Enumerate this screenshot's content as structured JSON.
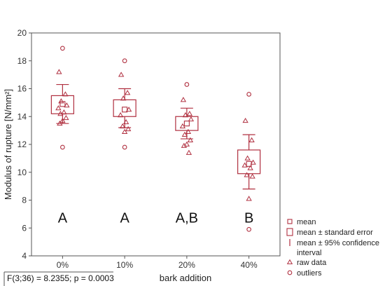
{
  "chart_data": {
    "type": "box",
    "title": "",
    "xlabel": "bark addition",
    "ylabel": "Modulus of rupture [N/mm²]",
    "ylim": [
      4,
      20
    ],
    "y_ticks": [
      4,
      6,
      8,
      10,
      12,
      14,
      16,
      18,
      20
    ],
    "grid": false,
    "legend_position": "bottom-right",
    "colors": {
      "marker": "#b03040",
      "axis": "#555555"
    },
    "categories": [
      "0%",
      "10%",
      "20%",
      "40%"
    ],
    "group_letters": [
      "A",
      "A",
      "A,B",
      "B"
    ],
    "groups": [
      {
        "category": "0%",
        "mean": 14.9,
        "se_low": 14.2,
        "se_high": 15.5,
        "ci_low": 13.5,
        "ci_high": 16.3,
        "raw": [
          17.2,
          15.6,
          15.1,
          14.8,
          14.6,
          14.3,
          14.2,
          13.9,
          13.7,
          13.5
        ],
        "outliers": [
          18.9,
          11.8
        ]
      },
      {
        "category": "10%",
        "mean": 14.5,
        "se_low": 14.0,
        "se_high": 15.2,
        "ci_low": 13.2,
        "ci_high": 16.0,
        "raw": [
          17.0,
          15.7,
          15.3,
          14.5,
          14.1,
          13.6,
          13.3,
          13.1,
          12.9
        ],
        "outliers": [
          18.0,
          11.8
        ]
      },
      {
        "category": "20%",
        "mean": 13.5,
        "se_low": 13.0,
        "se_high": 14.0,
        "ci_low": 12.4,
        "ci_high": 14.6,
        "raw": [
          15.2,
          14.2,
          14.1,
          13.8,
          13.3,
          12.9,
          12.7,
          12.3,
          12.0,
          11.9,
          11.4
        ],
        "outliers": [
          16.3
        ]
      },
      {
        "category": "40%",
        "mean": 10.6,
        "se_low": 9.9,
        "se_high": 11.6,
        "ci_low": 8.8,
        "ci_high": 12.7,
        "raw": [
          13.7,
          12.3,
          11.0,
          10.7,
          10.5,
          10.3,
          9.8,
          9.7,
          8.1
        ],
        "outliers": [
          15.6,
          5.9
        ]
      }
    ],
    "legend": [
      "mean",
      "mean ± standard error",
      "mean ± 95% confidence interval",
      "raw data",
      "outliers"
    ],
    "statistic": "F(3;36) = 8.2355; p = 0.0003"
  }
}
